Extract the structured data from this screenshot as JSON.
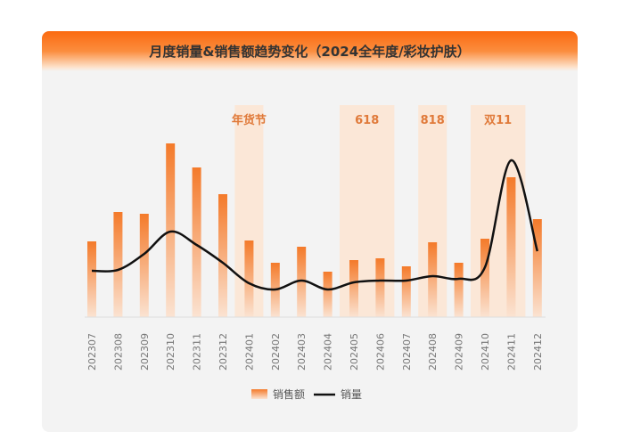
{
  "chart_data": {
    "type": "bar",
    "title": "月度销量&销售额趋势变化（2024全年度/彩妆护肤）",
    "categories": [
      "202307",
      "202308",
      "202309",
      "202310",
      "202311",
      "202312",
      "202401",
      "202402",
      "202403",
      "202404",
      "202405",
      "202406",
      "202407",
      "202408",
      "202409",
      "202410",
      "202411",
      "202412"
    ],
    "series": [
      {
        "name": "销售额",
        "type": "bar",
        "values": [
          85,
          118,
          116,
          195,
          168,
          138,
          86,
          61,
          79,
          51,
          64,
          66,
          57,
          84,
          61,
          88,
          157,
          110
        ]
      },
      {
        "name": "销量",
        "type": "line",
        "values": [
          52,
          53,
          71,
          96,
          81,
          61,
          38,
          31,
          41,
          31,
          39,
          41,
          41,
          46,
          43,
          56,
          176,
          74
        ]
      }
    ],
    "annotations": [
      {
        "label": "年货节",
        "from": "202401",
        "to": "202401"
      },
      {
        "label": "618",
        "from": "202405",
        "to": "202406"
      },
      {
        "label": "818",
        "from": "202408",
        "to": "202408"
      },
      {
        "label": "双11",
        "from": "202410",
        "to": "202411"
      }
    ],
    "yaxis_visible": false,
    "grid": false,
    "legend": "bottom",
    "colors": {
      "bar": "#f47a2a",
      "line": "#111111",
      "highlight": "#fde3cf",
      "annotation_text": "#e07a3a"
    }
  }
}
